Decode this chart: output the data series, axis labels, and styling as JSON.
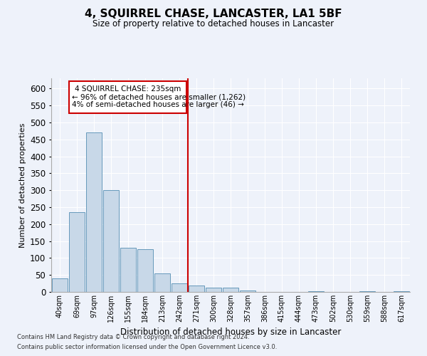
{
  "title": "4, SQUIRREL CHASE, LANCASTER, LA1 5BF",
  "subtitle": "Size of property relative to detached houses in Lancaster",
  "xlabel": "Distribution of detached houses by size in Lancaster",
  "ylabel": "Number of detached properties",
  "footer_line1": "Contains HM Land Registry data © Crown copyright and database right 2024.",
  "footer_line2": "Contains public sector information licensed under the Open Government Licence v3.0.",
  "annotation_line1": "4 SQUIRREL CHASE: 235sqm",
  "annotation_line2": "← 96% of detached houses are smaller (1,262)",
  "annotation_line3": "4% of semi-detached houses are larger (46) →",
  "property_line_x": 7.5,
  "bar_color": "#c8d8e8",
  "bar_edge_color": "#6699bb",
  "vline_color": "#cc0000",
  "background_color": "#eef2fa",
  "categories": [
    "40sqm",
    "69sqm",
    "97sqm",
    "126sqm",
    "155sqm",
    "184sqm",
    "213sqm",
    "242sqm",
    "271sqm",
    "300sqm",
    "328sqm",
    "357sqm",
    "386sqm",
    "415sqm",
    "444sqm",
    "473sqm",
    "502sqm",
    "530sqm",
    "559sqm",
    "588sqm",
    "617sqm"
  ],
  "values": [
    40,
    235,
    470,
    300,
    130,
    125,
    55,
    25,
    18,
    12,
    12,
    5,
    0,
    0,
    0,
    3,
    0,
    0,
    3,
    0,
    2
  ],
  "ylim": [
    0,
    630
  ],
  "yticks": [
    0,
    50,
    100,
    150,
    200,
    250,
    300,
    350,
    400,
    450,
    500,
    550,
    600
  ]
}
